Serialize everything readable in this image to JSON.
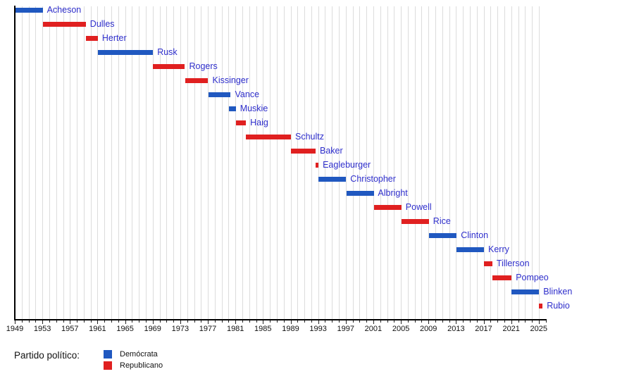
{
  "chart_data": {
    "type": "gantt",
    "description_visible_text_only": "timeline of names vs years, colored by party",
    "x_axis": {
      "min_year": 1949,
      "max_year": 2026,
      "major_ticks": [
        1949,
        1953,
        1957,
        1961,
        1965,
        1969,
        1973,
        1977,
        1981,
        1985,
        1989,
        1993,
        1997,
        2001,
        2005,
        2009,
        2013,
        2017,
        2021,
        2025
      ],
      "minor_tick_interval": 1,
      "gridlines": "yearly"
    },
    "party_colors": {
      "Demócrata": "#2058c0",
      "Republicano": "#e02020"
    },
    "colors": {
      "bar_label_text": "#2e2ecb",
      "axis_line": "#000000",
      "gridline": "#dcdcdc",
      "tick_label_text": "#111111"
    },
    "series": [
      {
        "label": "Acheson",
        "party": "Demócrata",
        "start": 1949.06,
        "end": 1953.05
      },
      {
        "label": "Dulles",
        "party": "Republicano",
        "start": 1953.07,
        "end": 1959.3
      },
      {
        "label": "Herter",
        "party": "Republicano",
        "start": 1959.3,
        "end": 1961.05
      },
      {
        "label": "Rusk",
        "party": "Demócrata",
        "start": 1961.06,
        "end": 1969.05
      },
      {
        "label": "Rogers",
        "party": "Republicano",
        "start": 1969.07,
        "end": 1973.68
      },
      {
        "label": "Kissinger",
        "party": "Republicano",
        "start": 1973.72,
        "end": 1977.05
      },
      {
        "label": "Vance",
        "party": "Demócrata",
        "start": 1977.06,
        "end": 1980.32
      },
      {
        "label": "Muskie",
        "party": "Demócrata",
        "start": 1980.05,
        "end": 1981.05
      },
      {
        "label": "Haig",
        "party": "Republicano",
        "start": 1981.06,
        "end": 1982.52
      },
      {
        "label": "Schultz",
        "party": "Republicano",
        "start": 1982.54,
        "end": 1989.05
      },
      {
        "label": "Baker",
        "party": "Republicano",
        "start": 1989.06,
        "end": 1992.63
      },
      {
        "label": "Eagleburger",
        "party": "Republicano",
        "start": 1992.63,
        "end": 1993.05
      },
      {
        "label": "Christopher",
        "party": "Demócrata",
        "start": 1993.06,
        "end": 1997.05
      },
      {
        "label": "Albright",
        "party": "Demócrata",
        "start": 1997.07,
        "end": 2001.05
      },
      {
        "label": "Powell",
        "party": "Republicano",
        "start": 2001.07,
        "end": 2005.07
      },
      {
        "label": "Rice",
        "party": "Republicano",
        "start": 2005.07,
        "end": 2009.06
      },
      {
        "label": "Clinton",
        "party": "Demócrata",
        "start": 2009.06,
        "end": 2013.08
      },
      {
        "label": "Kerry",
        "party": "Demócrata",
        "start": 2013.09,
        "end": 2017.05
      },
      {
        "label": "Tillerson",
        "party": "Republicano",
        "start": 2017.08,
        "end": 2018.26
      },
      {
        "label": "Pompeo",
        "party": "Republicano",
        "start": 2018.32,
        "end": 2021.05
      },
      {
        "label": "Blinken",
        "party": "Demócrata",
        "start": 2021.07,
        "end": 2025.05
      },
      {
        "label": "Rubio",
        "party": "Republicano",
        "start": 2025.06,
        "end": 2025.55
      }
    ]
  },
  "legend": {
    "title": "Partido político:",
    "items": [
      {
        "label": "Demócrata",
        "color": "#2058c0"
      },
      {
        "label": "Republicano",
        "color": "#e02020"
      }
    ]
  }
}
